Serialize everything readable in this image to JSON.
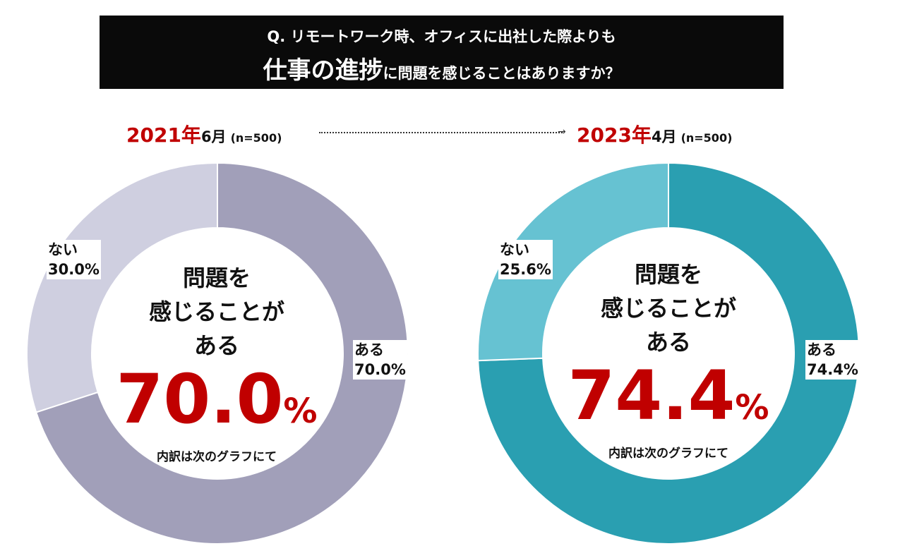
{
  "title": {
    "line1": "Q. リモートワーク時、オフィスに出社した際よりも",
    "line2_big": "仕事の進捗",
    "line2_small": "に問題を感じることはありますか？"
  },
  "arrow_label": "→",
  "chart_data": [
    {
      "type": "pie",
      "variant": "donut",
      "year": "2021年",
      "month": "6月",
      "sample": "(n=500)",
      "slices": [
        {
          "name": "ある",
          "value": 70.0,
          "label": "70.0%",
          "color": "#a19fb9"
        },
        {
          "name": "ない",
          "value": 30.0,
          "label": "30.0%",
          "color": "#cfcfe0"
        }
      ],
      "center_text": [
        "問題を",
        "感じることが",
        "ある"
      ],
      "center_value": "70.0",
      "center_unit": "%",
      "center_note": "内訳は次のグラフにて",
      "highlight_color": "#c00000"
    },
    {
      "type": "pie",
      "variant": "donut",
      "year": "2023年",
      "month": "4月",
      "sample": "(n=500)",
      "slices": [
        {
          "name": "ある",
          "value": 74.4,
          "label": "74.4%",
          "color": "#2a9fb1"
        },
        {
          "name": "ない",
          "value": 25.6,
          "label": "25.6%",
          "color": "#66c2d2"
        }
      ],
      "center_text": [
        "問題を",
        "感じることが",
        "ある"
      ],
      "center_value": "74.4",
      "center_unit": "%",
      "center_note": "内訳は次のグラフにて",
      "highlight_color": "#c00000"
    }
  ]
}
